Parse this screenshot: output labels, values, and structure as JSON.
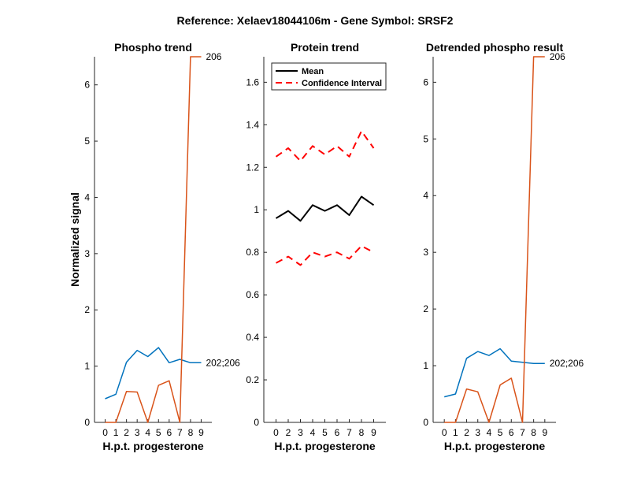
{
  "figure_title": "Reference:  Xelaev18044106m - Gene Symbol:  SRSF2",
  "colors": {
    "blue": "#0072BD",
    "orange": "#D95319",
    "black": "#000000",
    "red": "#FF0000"
  },
  "chart_data": [
    {
      "id": "phospho",
      "type": "line",
      "title": "Phospho trend",
      "xlabel": "H.p.t. progesterone",
      "ylabel": "Normalized signal",
      "xlim": [
        -1,
        10
      ],
      "ylim": [
        0,
        6.5
      ],
      "xticks": [
        0,
        1,
        2,
        3,
        4,
        5,
        6,
        7,
        8,
        9
      ],
      "yticks": [
        0,
        1,
        2,
        3,
        4,
        5,
        6
      ],
      "series": [
        {
          "name": "202;206",
          "color": "#0072BD",
          "label_at_end": true,
          "x": [
            0,
            1,
            2,
            3,
            4,
            5,
            6,
            7,
            8,
            9
          ],
          "y": [
            0.42,
            0.5,
            1.07,
            1.28,
            1.17,
            1.33,
            1.06,
            1.12,
            1.06,
            1.06
          ]
        },
        {
          "name": "206",
          "color": "#D95319",
          "label_at_end": true,
          "x": [
            0,
            1,
            2,
            3,
            4,
            5,
            6,
            7,
            8,
            9
          ],
          "y": [
            0,
            0,
            0.55,
            0.54,
            0,
            0.66,
            0.74,
            0,
            6.5,
            6.5
          ]
        }
      ]
    },
    {
      "id": "protein",
      "type": "line",
      "title": "Protein trend",
      "xlabel": "H.p.t. progesterone",
      "ylabel": "",
      "xlim": [
        -1,
        9
      ],
      "ylim": [
        0,
        1.72
      ],
      "xticks": [
        0,
        2,
        3,
        4,
        5,
        6,
        7,
        8,
        9
      ],
      "xtick_positions": [
        0,
        1,
        2,
        3,
        4,
        5,
        6,
        7,
        8
      ],
      "yticks": [
        0,
        0.2,
        0.4,
        0.6,
        0.8,
        1,
        1.2,
        1.4,
        1.6
      ],
      "legend": {
        "location": "top-left",
        "entries": [
          {
            "label": "Mean",
            "style": "solid",
            "color": "#000000"
          },
          {
            "label": "Confidence Interval",
            "style": "dashed",
            "color": "#FF0000"
          }
        ]
      },
      "series": [
        {
          "name": "Mean",
          "style": "solid",
          "color": "#000000",
          "x": [
            0,
            1,
            2,
            3,
            4,
            5,
            6,
            7,
            8
          ],
          "y": [
            0.96,
            0.995,
            0.948,
            1.022,
            0.995,
            1.022,
            0.975,
            1.062,
            1.022
          ]
        },
        {
          "name": "CI upper",
          "style": "dashed",
          "color": "#FF0000",
          "x": [
            0,
            1,
            2,
            3,
            4,
            5,
            6,
            7,
            8
          ],
          "y": [
            1.25,
            1.29,
            1.23,
            1.3,
            1.26,
            1.3,
            1.25,
            1.37,
            1.29
          ]
        },
        {
          "name": "CI lower",
          "style": "dashed",
          "color": "#FF0000",
          "x": [
            0,
            1,
            2,
            3,
            4,
            5,
            6,
            7,
            8
          ],
          "y": [
            0.75,
            0.78,
            0.74,
            0.8,
            0.78,
            0.8,
            0.77,
            0.83,
            0.8
          ]
        }
      ]
    },
    {
      "id": "detrended",
      "type": "line",
      "title": "Detrended phospho result",
      "xlabel": "H.p.t. progesterone",
      "ylabel": "",
      "xlim": [
        -1,
        10
      ],
      "ylim": [
        0,
        6.45
      ],
      "xticks": [
        0,
        1,
        2,
        3,
        4,
        5,
        6,
        7,
        8,
        9
      ],
      "yticks": [
        0,
        1,
        2,
        3,
        4,
        5,
        6
      ],
      "series": [
        {
          "name": "202;206",
          "color": "#0072BD",
          "label_at_end": true,
          "x": [
            0,
            1,
            2,
            3,
            4,
            5,
            6,
            7,
            8,
            9
          ],
          "y": [
            0.45,
            0.5,
            1.13,
            1.25,
            1.18,
            1.3,
            1.08,
            1.06,
            1.04,
            1.04
          ]
        },
        {
          "name": "206",
          "color": "#D95319",
          "label_at_end": true,
          "x": [
            0,
            1,
            2,
            3,
            4,
            5,
            6,
            7,
            8,
            9
          ],
          "y": [
            0,
            0,
            0.59,
            0.54,
            0,
            0.66,
            0.78,
            0,
            6.45,
            6.45
          ]
        }
      ]
    }
  ]
}
